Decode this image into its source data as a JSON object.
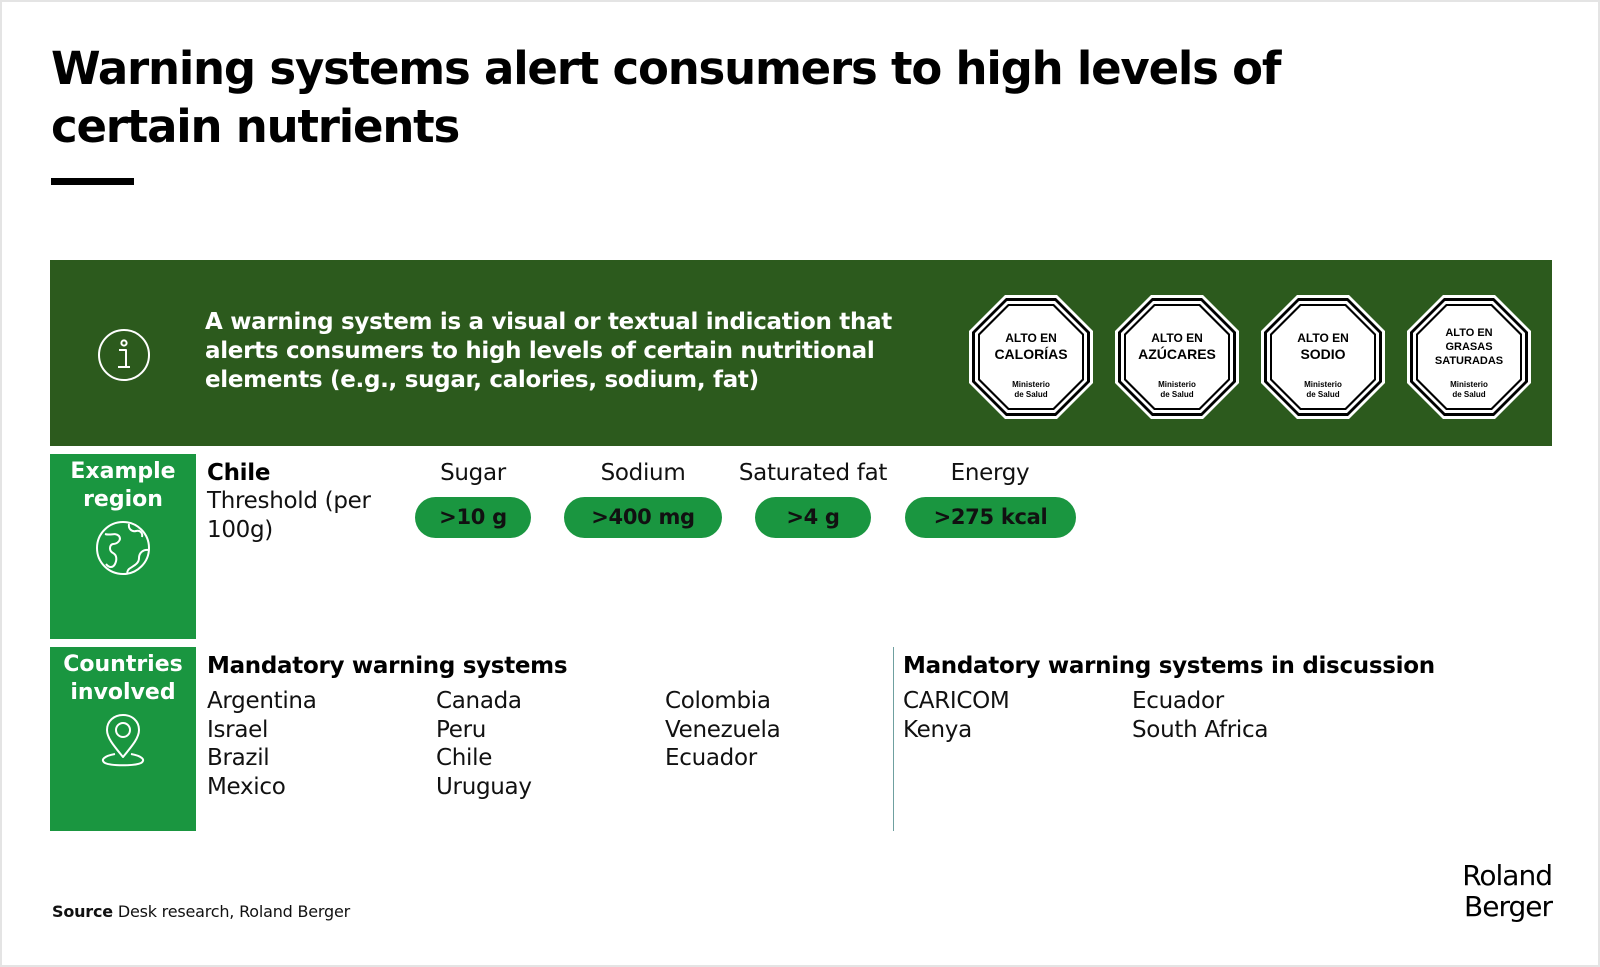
{
  "title": "Warning systems alert consumers to high levels of certain nutrients",
  "banner": {
    "definition": "A warning system is a visual or textual indication that alerts consumers to high levels of certain nutritional elements (e.g., sugar, calories, sodium, fat)",
    "icon": "info-icon",
    "labels": [
      {
        "line1": "ALTO EN",
        "line2": "CALORÍAS",
        "line3": "",
        "ministry1": "Ministerio",
        "ministry2": "de Salud"
      },
      {
        "line1": "ALTO EN",
        "line2": "AZÚCARES",
        "line3": "",
        "ministry1": "Ministerio",
        "ministry2": "de Salud"
      },
      {
        "line1": "ALTO EN",
        "line2": "SODIO",
        "line3": "",
        "ministry1": "Ministerio",
        "ministry2": "de Salud"
      },
      {
        "line1": "ALTO EN",
        "line2": "GRASAS",
        "line3": "SATURADAS",
        "ministry1": "Ministerio",
        "ministry2": "de Salud"
      }
    ]
  },
  "example_region": {
    "label": "Example region",
    "icon": "globe-icon",
    "country": "Chile",
    "threshold_label": "Threshold (per 100g)",
    "nutrients": [
      {
        "name": "Sugar",
        "value": ">10 g"
      },
      {
        "name": "Sodium",
        "value": ">400 mg"
      },
      {
        "name": "Saturated fat",
        "value": ">4 g"
      },
      {
        "name": "Energy",
        "value": ">275 kcal"
      }
    ]
  },
  "countries_involved": {
    "label": "Countries involved",
    "icon": "location-pin-icon",
    "mandatory": {
      "heading": "Mandatory warning systems",
      "columns": [
        [
          "Argentina",
          "Israel",
          "Brazil",
          "Mexico"
        ],
        [
          "Canada",
          "Peru",
          "Chile",
          "Uruguay"
        ],
        [
          "Colombia",
          "Venezuela",
          "Ecuador"
        ]
      ]
    },
    "in_discussion": {
      "heading": "Mandatory warning systems in discussion",
      "columns": [
        [
          "CARICOM",
          "Kenya"
        ],
        [
          "Ecuador",
          "South Africa"
        ]
      ]
    }
  },
  "footer": {
    "source_label": "Source",
    "source_text": "Desk research, Roland Berger",
    "logo_line1": "Roland",
    "logo_line2": "Berger"
  },
  "colors": {
    "banner": "#2c5a1d",
    "accent_green": "#1a9640",
    "text": "#111111"
  }
}
